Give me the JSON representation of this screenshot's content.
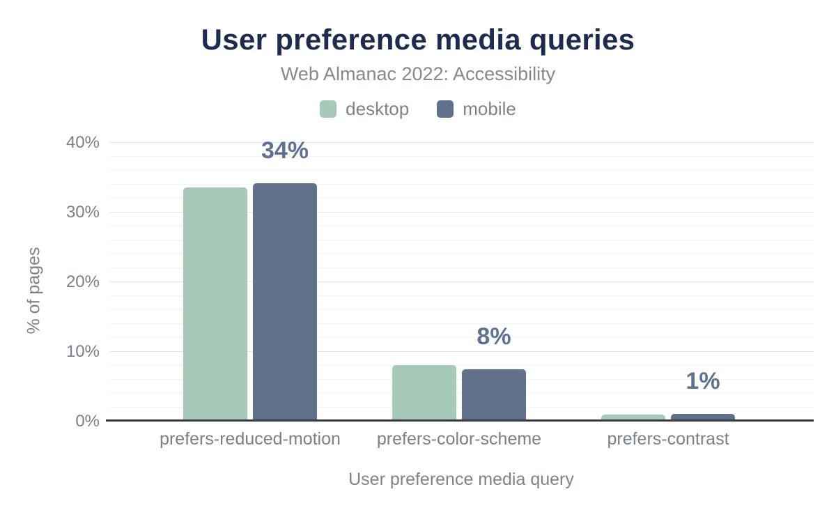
{
  "header": {
    "title": "User preference media queries",
    "subtitle": "Web Almanac 2022: Accessibility"
  },
  "legend": {
    "items": [
      {
        "label": "desktop",
        "color": "#a7c9ba"
      },
      {
        "label": "mobile",
        "color": "#61708b"
      }
    ]
  },
  "chart_data": {
    "type": "bar",
    "title": "User preference media queries",
    "subtitle": "Web Almanac 2022: Accessibility",
    "categories": [
      "prefers-reduced-motion",
      "prefers-color-scheme",
      "prefers-contrast"
    ],
    "series": [
      {
        "name": "desktop",
        "color": "#a7c9ba",
        "values": [
          33.6,
          8.1,
          1.0
        ]
      },
      {
        "name": "mobile",
        "color": "#61708b",
        "values": [
          34.2,
          7.5,
          1.1
        ]
      }
    ],
    "data_labels": [
      "34%",
      "8%",
      "1%"
    ],
    "data_labels_over_series": "mobile",
    "xlabel": "User preference media query",
    "ylabel": "% of pages",
    "ylim": [
      0,
      40
    ],
    "yticks": [
      0,
      10,
      20,
      30,
      40
    ],
    "ytick_labels": [
      "0%",
      "10%",
      "20%",
      "30%",
      "40%"
    ],
    "minor_grid_step": 2,
    "grid": "horizontal",
    "legend_position": "top"
  },
  "colors": {
    "background": "#ffffff",
    "title_text": "#1f2b4d",
    "subtitle_text": "#84888f",
    "axis_title_text": "#7f838c",
    "tick_text": "#7b8089",
    "data_label": "#5d7191",
    "axis_line": "#3a3b3d",
    "grid_major": "#e6e6e8",
    "grid_minor": "#f4f4f6",
    "desktop": "#a7c9ba",
    "mobile": "#61708b"
  }
}
